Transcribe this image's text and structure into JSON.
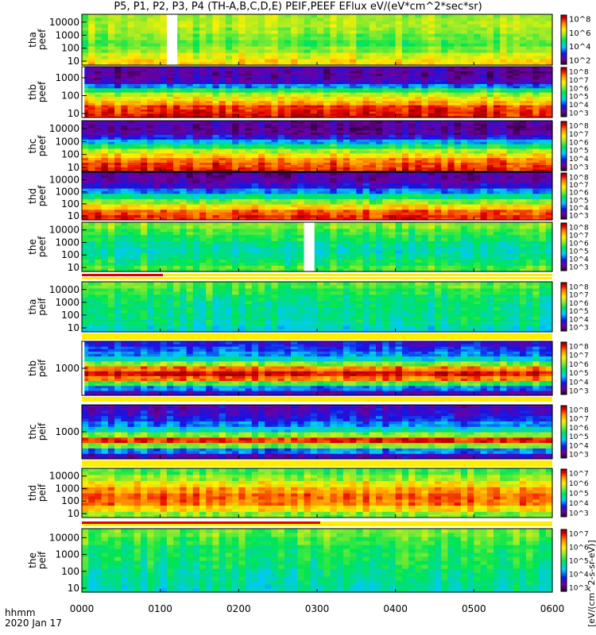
{
  "chart_data": {
    "type": "heatmap",
    "title": "P5, P1, P2, P3, P4 (TH-A,B,C,D,E) PEIF,PEEF EFlux eV/(eV*cm^2*sec*sr)",
    "x_ticks": [
      "0000",
      "0100",
      "0200",
      "0300",
      "0400",
      "0500",
      "0600"
    ],
    "x_label": "hhmm",
    "x_date": "2020 Jan 17",
    "x_range_minutes": [
      0,
      360
    ],
    "colorbar_units": "[eV/(cm^2-s-sr-eV)]",
    "panels": [
      {
        "label1": "tha",
        "label2": "peef",
        "yticks": [
          "10000",
          "1000",
          "100",
          "10"
        ],
        "cbar": [
          "10^8",
          "10^6",
          "10^4",
          "10^2"
        ],
        "profile": [
          0.74,
          0.68,
          0.6,
          0.55,
          0.58,
          0.62,
          0.64,
          0.62
        ],
        "gaps": [
          [
            65,
            73
          ]
        ]
      },
      {
        "label1": "thb",
        "label2": "peef",
        "yticks": [
          "1000",
          "100",
          "10"
        ],
        "cbar": [
          "10^8",
          "10^7",
          "10^6",
          "10^5",
          "10^4",
          "10^3"
        ],
        "profile": [
          0.95,
          0.93,
          0.9,
          0.8,
          0.72,
          0.64,
          0.5,
          0.3,
          0.15,
          0.12,
          0.1,
          0.12
        ],
        "gaps": [
          [
            0,
            2
          ]
        ]
      },
      {
        "label1": "thc",
        "label2": "peef",
        "yticks": [
          "10000",
          "1000",
          "100",
          "10"
        ],
        "cbar": [
          "10^8",
          "10^7",
          "10^6",
          "10^5",
          "10^4",
          "10^3"
        ],
        "profile": [
          0.93,
          0.9,
          0.85,
          0.75,
          0.65,
          0.5,
          0.35,
          0.2,
          0.12,
          0.1,
          0.12
        ],
        "gaps": []
      },
      {
        "label1": "thd",
        "label2": "peef",
        "yticks": [
          "10000",
          "1000",
          "100",
          "10"
        ],
        "cbar": [
          "10^8",
          "10^7",
          "10^6",
          "10^5",
          "10^4",
          "10^3"
        ],
        "profile": [
          0.92,
          0.88,
          0.75,
          0.6,
          0.45,
          0.3,
          0.18,
          0.12,
          0.1
        ],
        "gaps": []
      },
      {
        "label1": "the",
        "label2": "peef",
        "yticks": [
          "10000",
          "1000",
          "100",
          "10"
        ],
        "cbar": [
          "10^8",
          "10^7",
          "10^6",
          "10^5",
          "10^4",
          "10^3"
        ],
        "profile": [
          0.55,
          0.5,
          0.45,
          0.42,
          0.45,
          0.5,
          0.55,
          0.6
        ],
        "gaps": [
          [
            170,
            178
          ]
        ]
      },
      {
        "label1": "tha",
        "label2": "peif",
        "yticks": [
          "10000",
          "1000",
          "100",
          "10"
        ],
        "cbar": [
          "10^8",
          "10^7",
          "10^6",
          "10^5",
          "10^4",
          "10^3"
        ],
        "profile": [
          0.4,
          0.44,
          0.45,
          0.45,
          0.46,
          0.48,
          0.52,
          0.56
        ],
        "gaps": []
      },
      {
        "label1": "thb",
        "label2": "peif",
        "yticks": [
          "1000"
        ],
        "cbar": [
          "10^8",
          "10^7",
          "10^6",
          "10^5",
          "10^4",
          "10^3"
        ],
        "profile": [
          0.15,
          0.3,
          0.55,
          0.85,
          0.95,
          0.85,
          0.6,
          0.4,
          0.3,
          0.25,
          0.2
        ],
        "gaps": [
          [
            0,
            2
          ]
        ]
      },
      {
        "label1": "thc",
        "label2": "peif",
        "yticks": [
          "1000"
        ],
        "cbar": [
          "10^8",
          "10^7",
          "10^6",
          "10^5",
          "10^4",
          "10^3"
        ],
        "profile": [
          0.15,
          0.3,
          0.6,
          0.92,
          0.6,
          0.4,
          0.3,
          0.22,
          0.18,
          0.15
        ],
        "gaps": []
      },
      {
        "label1": "thd",
        "label2": "peif",
        "yticks": [
          "10000",
          "1000",
          "100",
          "10"
        ],
        "cbar": [
          "10^7",
          "10^6",
          "10^5",
          "10^4",
          "10^3"
        ],
        "profile": [
          0.6,
          0.75,
          0.85,
          0.87,
          0.82,
          0.72,
          0.62,
          0.55
        ],
        "gaps": []
      },
      {
        "label1": "the",
        "label2": "peif",
        "yticks": [
          "10000",
          "1000",
          "100",
          "10"
        ],
        "cbar": [
          "10^7",
          "10^6",
          "10^5",
          "10^4",
          "10^3"
        ],
        "profile": [
          0.42,
          0.44,
          0.45,
          0.48,
          0.5,
          0.5,
          0.54,
          0.58
        ],
        "gaps": []
      }
    ]
  }
}
